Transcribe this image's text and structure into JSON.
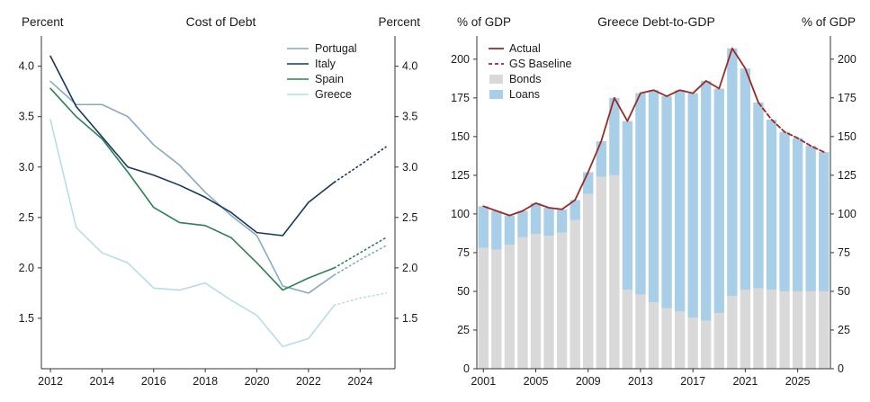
{
  "chart_data": [
    {
      "type": "line",
      "title": "Cost of Debt",
      "left_axis_label": "Percent",
      "right_axis_label": "Percent",
      "x": [
        2012,
        2013,
        2014,
        2015,
        2016,
        2017,
        2018,
        2019,
        2020,
        2021,
        2022,
        2023,
        2024,
        2025
      ],
      "x_ticks": [
        2012,
        2014,
        2016,
        2018,
        2020,
        2022,
        2024
      ],
      "x_tick_labels": [
        "2012",
        "2014",
        "2016",
        "2018",
        "2020",
        "2022",
        "2024"
      ],
      "ylim": [
        1.0,
        4.3
      ],
      "y_ticks": [
        1.5,
        2.0,
        2.5,
        3.0,
        3.5,
        4.0
      ],
      "y_tick_labels": [
        "1.5",
        "2.0",
        "2.5",
        "3.0",
        "3.5",
        "4.0"
      ],
      "grid": false,
      "legend_position": "top-right",
      "forecast_start_year": 2023,
      "series": [
        {
          "name": "Portugal",
          "color": "#8aa9bd",
          "values": [
            3.85,
            3.62,
            3.62,
            3.5,
            3.22,
            3.02,
            2.75,
            2.52,
            2.32,
            1.82,
            1.75,
            1.93,
            2.08,
            2.22
          ]
        },
        {
          "name": "Italy",
          "color": "#17375e",
          "values": [
            4.1,
            3.6,
            3.3,
            3.0,
            2.92,
            2.82,
            2.7,
            2.55,
            2.35,
            2.32,
            2.65,
            2.85,
            3.02,
            3.2
          ]
        },
        {
          "name": "Spain",
          "color": "#2b8152",
          "values": [
            3.78,
            3.5,
            3.28,
            2.95,
            2.6,
            2.45,
            2.42,
            2.3,
            2.05,
            1.78,
            1.9,
            2.0,
            2.15,
            2.3
          ]
        },
        {
          "name": "Greece",
          "color": "#b9dce7",
          "values": [
            3.47,
            2.4,
            2.15,
            2.05,
            1.8,
            1.78,
            1.85,
            1.68,
            1.53,
            1.22,
            1.3,
            1.63,
            1.7,
            1.75
          ]
        }
      ]
    },
    {
      "type": "bar",
      "title": "Greece Debt-to-GDP",
      "left_axis_label": "% of GDP",
      "right_axis_label": "% of GDP",
      "x": [
        2001,
        2002,
        2003,
        2004,
        2005,
        2006,
        2007,
        2008,
        2009,
        2010,
        2011,
        2012,
        2013,
        2014,
        2015,
        2016,
        2017,
        2018,
        2019,
        2020,
        2021,
        2022,
        2023,
        2024,
        2025,
        2026,
        2027
      ],
      "x_ticks": [
        2001,
        2005,
        2009,
        2013,
        2017,
        2021,
        2025
      ],
      "x_tick_labels": [
        "2001",
        "2005",
        "2009",
        "2013",
        "2017",
        "2021",
        "2025"
      ],
      "ylim": [
        0,
        215
      ],
      "y_ticks": [
        0,
        25,
        50,
        75,
        100,
        125,
        150,
        175,
        200
      ],
      "y_tick_labels": [
        "0",
        "25",
        "50",
        "75",
        "100",
        "125",
        "150",
        "175",
        "200"
      ],
      "grid": false,
      "legend_position": "top-left",
      "stacked_series": [
        {
          "name": "Bonds",
          "color": "#d9d9d9",
          "values": [
            78,
            77,
            80,
            85,
            87,
            86,
            88,
            96,
            113,
            124,
            125,
            51,
            48,
            43,
            39,
            37,
            33,
            31,
            36,
            47,
            51,
            52,
            51,
            50,
            50,
            50,
            50
          ]
        },
        {
          "name": "Loans",
          "color": "#a9cfe8",
          "values": [
            27,
            25,
            19,
            17,
            20,
            18,
            15,
            13,
            14,
            23,
            50,
            109,
            130,
            137,
            137,
            143,
            145,
            155,
            145,
            160,
            143,
            120,
            110,
            103,
            99,
            94,
            90
          ]
        }
      ],
      "line_series": [
        {
          "name": "Actual",
          "color": "#9b2a24",
          "dash": null,
          "from": 2001,
          "to": 2022
        },
        {
          "name": "GS Baseline",
          "color": "#9b2a24",
          "dash": "5 3",
          "from": 2022,
          "to": 2027
        }
      ],
      "legend": [
        {
          "label": "Actual",
          "swatch": "line",
          "color": "#9b2a24"
        },
        {
          "label": "GS Baseline",
          "swatch": "dashed-line",
          "color": "#9b2a24"
        },
        {
          "label": "Bonds",
          "swatch": "rect",
          "color": "#d9d9d9"
        },
        {
          "label": "Loans",
          "swatch": "rect",
          "color": "#a9cfe8"
        }
      ]
    }
  ]
}
